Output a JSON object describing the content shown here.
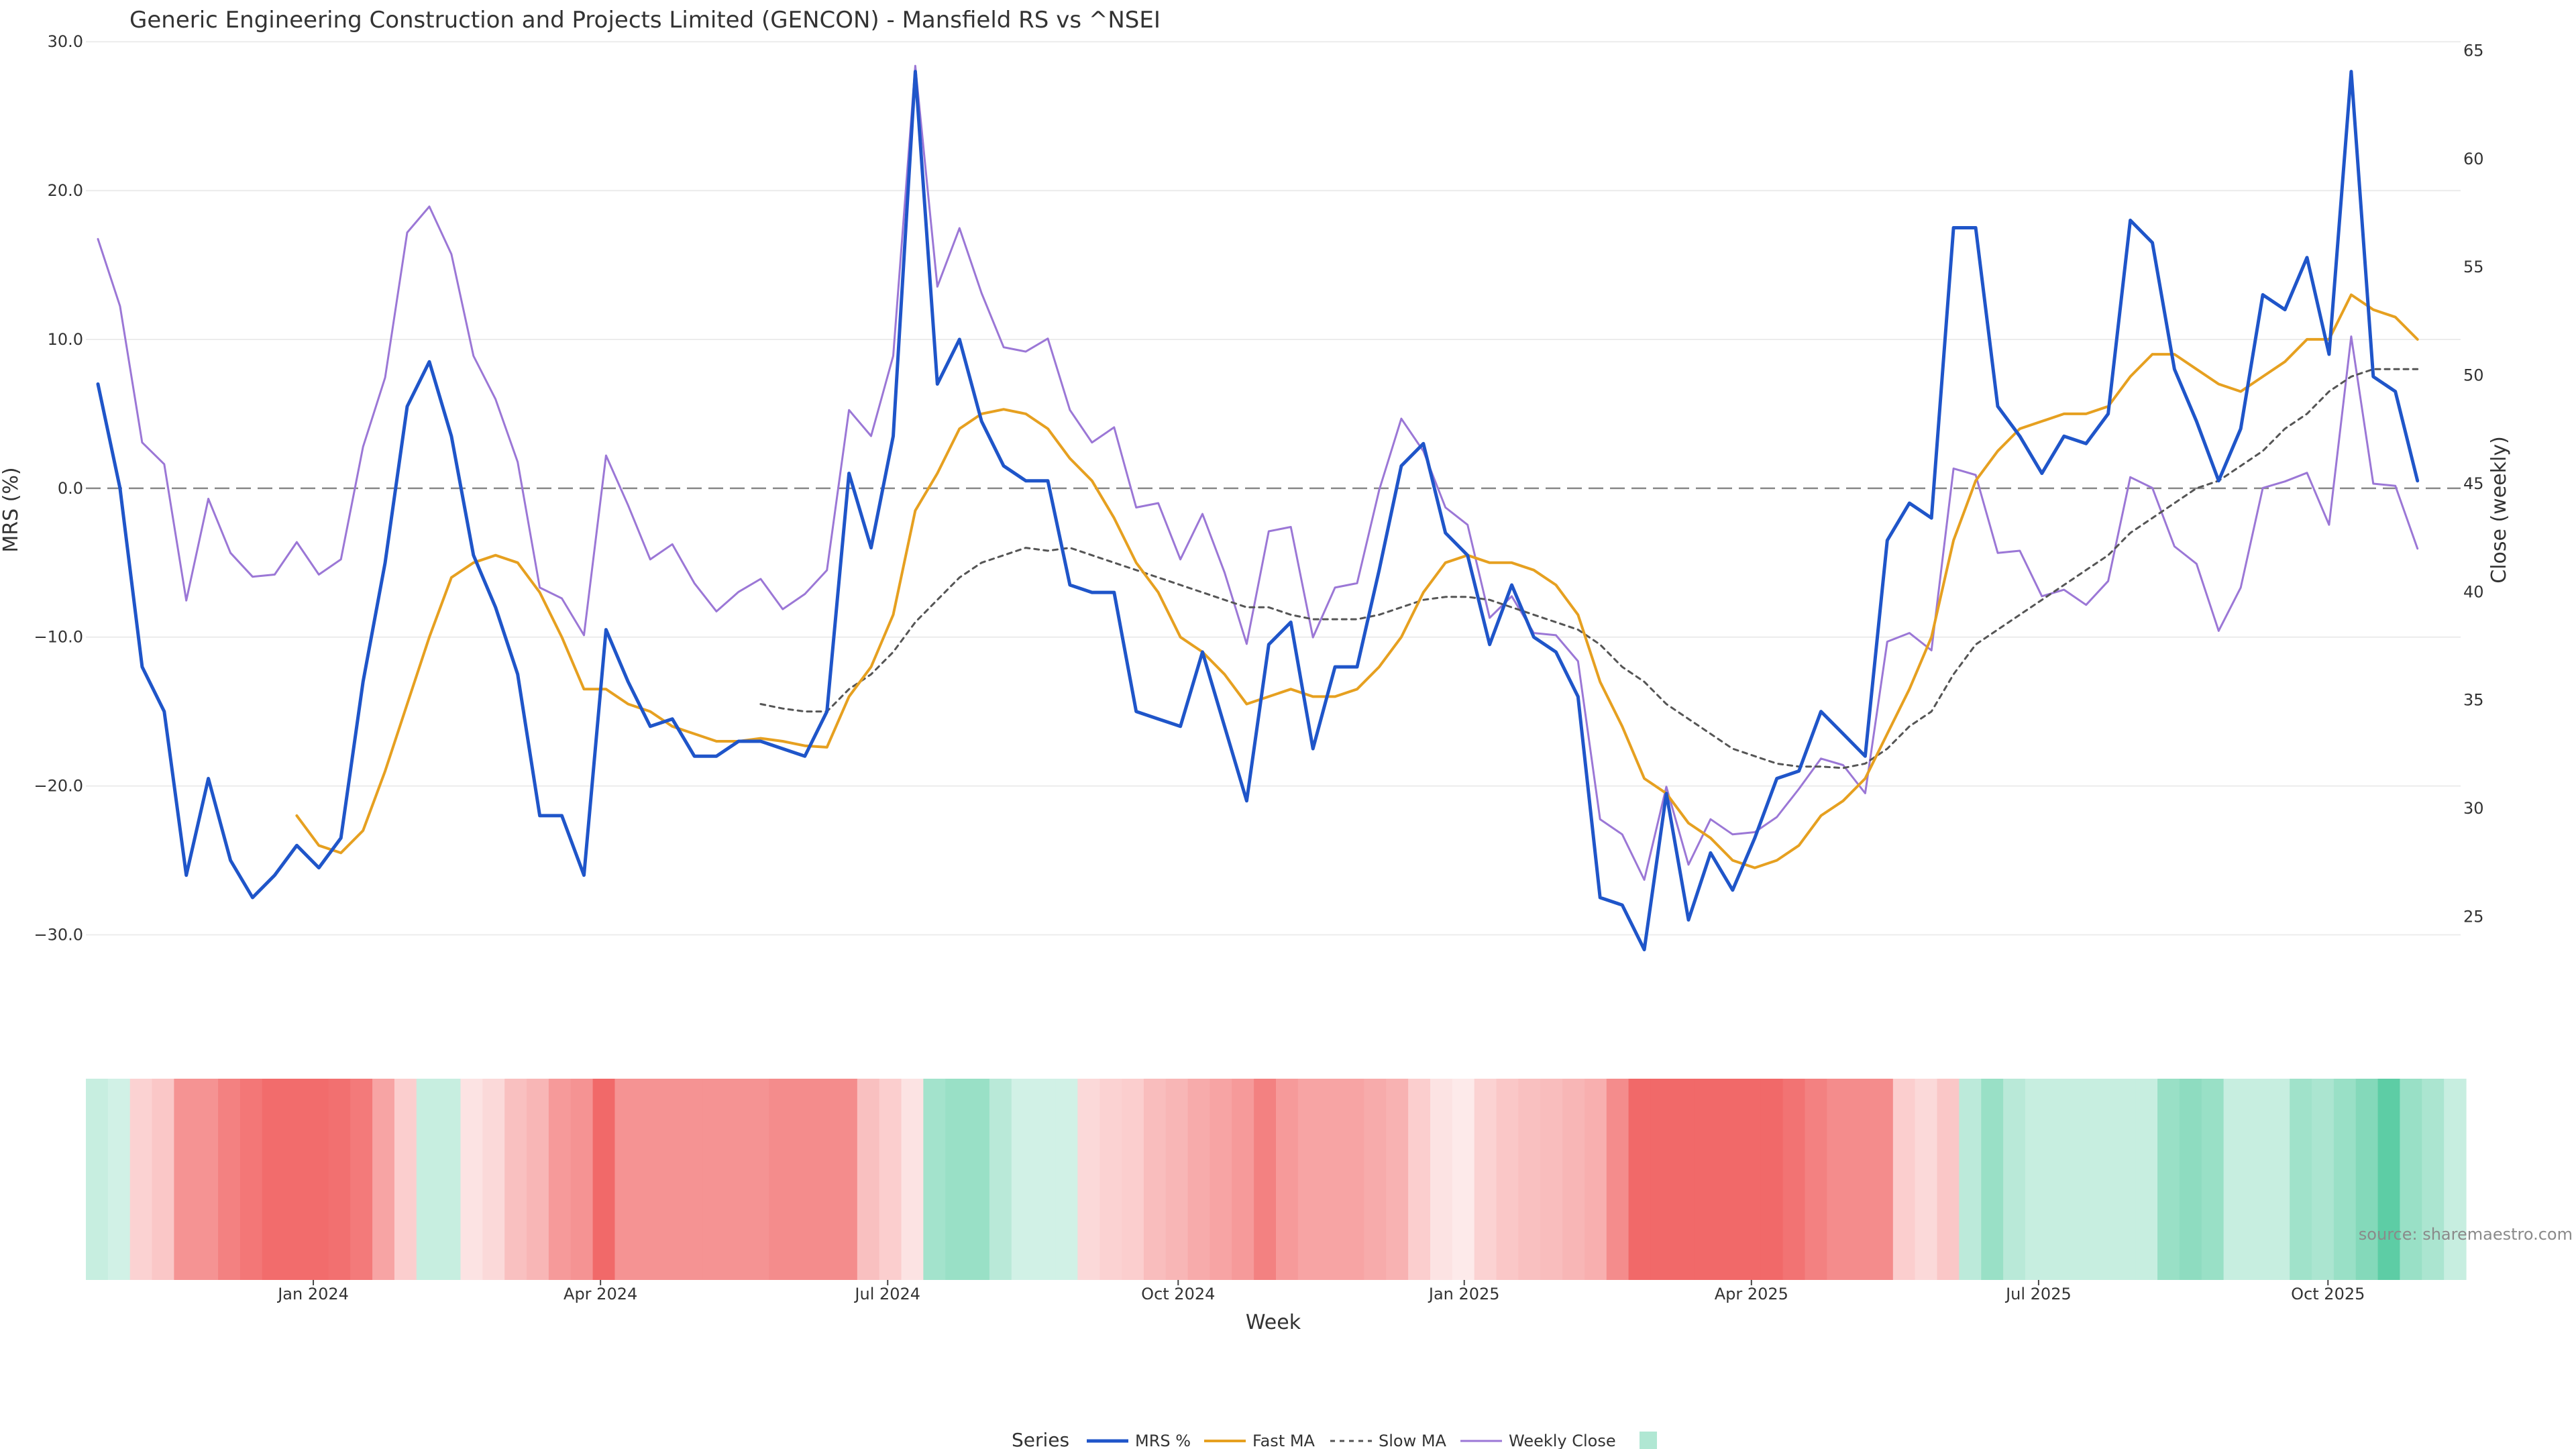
{
  "chart_data": {
    "type": "line",
    "title": "Generic Engineering Construction and Projects Limited (GENCON) - Mansfield RS vs ^NSEI",
    "xlabel": "Week",
    "ylabel": "MRS (%)",
    "y2label": "Close (weekly)",
    "ylim": [
      -33,
      31
    ],
    "y2lim": [
      22.1,
      66.1
    ],
    "yticks": [
      "30.0",
      "20.0",
      "10.0",
      "0.0",
      "−10.0",
      "−20.0",
      "−30.0"
    ],
    "yticks_values": [
      30,
      20,
      10,
      0,
      -10,
      -20,
      -30
    ],
    "y2ticks": [
      25,
      30,
      35,
      40,
      45,
      50,
      55,
      60,
      65
    ],
    "x_tick_labels": [
      "Jan 2024",
      "Apr 2024",
      "Jul 2024",
      "Oct 2024",
      "Jan 2025",
      "Apr 2025",
      "Jul 2025",
      "Oct 2025"
    ],
    "x_tick_index": [
      9.75,
      22.75,
      35.75,
      48.9,
      61.85,
      74.85,
      87.85,
      100.95
    ],
    "zero_line": true,
    "grid": true,
    "legend_title": "Series",
    "legend_placement": "bottom-center",
    "source_text": "source: sharemaestro.com",
    "colors": {
      "mrs": "#1f55c9",
      "fast": "#e6a020",
      "slow": "#555555",
      "close": "#9b77d6",
      "zero": "#888888",
      "heat_pos": "#4fc99d",
      "heat_neg": "#ef5050"
    },
    "series": [
      {
        "name": "MRS %",
        "style": "solid",
        "axis": "left",
        "values": [
          7.0,
          0.0,
          -12.0,
          -15.0,
          -26.0,
          -19.5,
          -25.0,
          -27.5,
          -26.0,
          -24.0,
          -25.5,
          -23.5,
          -13.0,
          -5.0,
          5.5,
          8.5,
          3.5,
          -4.5,
          -8.0,
          -12.5,
          -22.0,
          -22.0,
          -26.0,
          -9.5,
          -13.0,
          -16.0,
          -15.5,
          -18.0,
          -18.0,
          -17.0,
          -17.0,
          -17.5,
          -18.0,
          -15.0,
          1.0,
          -4.0,
          3.5,
          28.0,
          7.0,
          10.0,
          4.5,
          1.5,
          0.5,
          0.5,
          -6.5,
          -7.0,
          -7.0,
          -15.0,
          -15.5,
          -16.0,
          -11.0,
          -16.0,
          -21.0,
          -10.5,
          -9.0,
          -17.5,
          -12.0,
          -12.0,
          -5.5,
          1.5,
          3.0,
          -3.0,
          -4.5,
          -10.5,
          -6.5,
          -10.0,
          -11.0,
          -14.0,
          -27.5,
          -28.0,
          -31.0,
          -20.5,
          -29.0,
          -24.5,
          -27.0,
          -23.5,
          -19.5,
          -19.0,
          -15.0,
          -16.5,
          -18.0,
          -3.5,
          -1.0,
          -2.0,
          17.5,
          17.5,
          5.5,
          3.5,
          1.0,
          3.5,
          3.0,
          5.0,
          18.0,
          16.5,
          8.0,
          4.5,
          0.5,
          4.0,
          13.0,
          12.0,
          15.5,
          9.0,
          28.0,
          7.5,
          6.5,
          0.5
        ]
      },
      {
        "name": "Fast MA",
        "style": "solid",
        "axis": "left",
        "values": [
          null,
          null,
          null,
          null,
          null,
          null,
          null,
          null,
          null,
          -22.0,
          -24.0,
          -24.5,
          -23.0,
          -19.0,
          -14.5,
          -10.0,
          -6.0,
          -5.0,
          -4.5,
          -5.0,
          -7.0,
          -10.0,
          -13.5,
          -13.5,
          -14.5,
          -15.0,
          -16.0,
          -16.5,
          -17.0,
          -17.0,
          -16.8,
          -17.0,
          -17.3,
          -17.4,
          -14.0,
          -12.0,
          -8.5,
          -1.5,
          1.0,
          4.0,
          5.0,
          5.3,
          5.0,
          4.0,
          2.0,
          0.5,
          -2.0,
          -5.0,
          -7.0,
          -10.0,
          -11.0,
          -12.5,
          -14.5,
          -14.0,
          -13.5,
          -14.0,
          -14.0,
          -13.5,
          -12.0,
          -10.0,
          -7.0,
          -5.0,
          -4.5,
          -5.0,
          -5.0,
          -5.5,
          -6.5,
          -8.5,
          -13.0,
          -16.0,
          -19.5,
          -20.5,
          -22.5,
          -23.5,
          -25.0,
          -25.5,
          -25.0,
          -24.0,
          -22.0,
          -21.0,
          -19.5,
          -16.5,
          -13.5,
          -10.0,
          -3.5,
          0.5,
          2.5,
          4.0,
          4.5,
          5.0,
          5.0,
          5.5,
          7.5,
          9.0,
          9.0,
          8.0,
          7.0,
          6.5,
          7.5,
          8.5,
          10.0,
          10.0,
          13.0,
          12.0,
          11.5,
          10.0
        ]
      },
      {
        "name": "Slow MA",
        "style": "dashed",
        "axis": "left",
        "values": [
          null,
          null,
          null,
          null,
          null,
          null,
          null,
          null,
          null,
          null,
          null,
          null,
          null,
          null,
          null,
          null,
          null,
          null,
          null,
          null,
          null,
          null,
          null,
          null,
          null,
          null,
          null,
          null,
          null,
          null,
          -14.5,
          -14.8,
          -15.0,
          -15.0,
          -13.5,
          -12.5,
          -11.0,
          -9.0,
          -7.5,
          -6.0,
          -5.0,
          -4.5,
          -4.0,
          -4.2,
          -4.0,
          -4.5,
          -5.0,
          -5.5,
          -6.0,
          -6.5,
          -7.0,
          -7.5,
          -8.0,
          -8.0,
          -8.5,
          -8.8,
          -8.8,
          -8.8,
          -8.5,
          -8.0,
          -7.5,
          -7.3,
          -7.3,
          -7.5,
          -8.0,
          -8.5,
          -9.0,
          -9.5,
          -10.5,
          -12.0,
          -13.0,
          -14.5,
          -15.5,
          -16.5,
          -17.5,
          -18.0,
          -18.5,
          -18.7,
          -18.7,
          -18.8,
          -18.5,
          -17.5,
          -16.0,
          -15.0,
          -12.5,
          -10.5,
          -9.5,
          -8.5,
          -7.5,
          -6.5,
          -5.5,
          -4.5,
          -3.0,
          -2.0,
          -1.0,
          0.0,
          0.5,
          1.5,
          2.5,
          4.0,
          5.0,
          6.5,
          7.5,
          8.0,
          8.0,
          8.0
        ]
      },
      {
        "name": "Weekly Close",
        "style": "solid",
        "axis": "right",
        "values": [
          56.3,
          53.2,
          46.9,
          45.9,
          39.6,
          44.3,
          41.8,
          40.7,
          40.8,
          42.3,
          40.8,
          41.5,
          46.7,
          49.9,
          56.6,
          57.8,
          55.6,
          50.9,
          48.9,
          46.0,
          40.2,
          39.7,
          38.0,
          46.3,
          44.0,
          41.5,
          42.2,
          40.4,
          39.1,
          40.0,
          40.6,
          39.2,
          39.9,
          41.0,
          48.4,
          47.2,
          50.9,
          64.3,
          54.1,
          56.8,
          53.8,
          51.3,
          51.1,
          51.7,
          48.4,
          46.9,
          47.6,
          43.9,
          44.1,
          41.5,
          43.6,
          40.9,
          37.6,
          42.8,
          43.0,
          37.9,
          40.2,
          40.4,
          44.7,
          48.0,
          46.5,
          43.9,
          43.1,
          38.8,
          39.8,
          38.1,
          38.0,
          36.8,
          29.5,
          28.8,
          26.7,
          31.0,
          27.4,
          29.5,
          28.8,
          28.9,
          29.6,
          30.9,
          32.3,
          32.0,
          30.7,
          37.7,
          38.1,
          37.3,
          45.7,
          45.4,
          41.8,
          41.9,
          39.8,
          40.1,
          39.4,
          40.5,
          45.3,
          44.8,
          42.1,
          41.3,
          38.2,
          40.2,
          44.8,
          45.1,
          45.5,
          43.1,
          51.8,
          45.0,
          44.9,
          42.0
        ]
      }
    ],
    "heatmap_strip": [
      0.32,
      0.26,
      -0.26,
      -0.32,
      -0.62,
      -0.62,
      -0.72,
      -0.78,
      -0.84,
      -0.84,
      -0.84,
      -0.82,
      -0.76,
      -0.52,
      -0.28,
      0.32,
      0.32,
      -0.16,
      -0.22,
      -0.36,
      -0.42,
      -0.58,
      -0.62,
      -0.86,
      -0.62,
      -0.62,
      -0.62,
      -0.62,
      -0.62,
      -0.62,
      -0.62,
      -0.66,
      -0.66,
      -0.66,
      -0.66,
      -0.36,
      -0.28,
      -0.16,
      0.52,
      0.58,
      0.58,
      0.4,
      0.26,
      0.26,
      0.26,
      -0.22,
      -0.26,
      -0.28,
      -0.38,
      -0.42,
      -0.48,
      -0.52,
      -0.58,
      -0.72,
      -0.58,
      -0.52,
      -0.52,
      -0.52,
      -0.48,
      -0.44,
      -0.28,
      -0.16,
      -0.12,
      -0.26,
      -0.32,
      -0.36,
      -0.38,
      -0.42,
      -0.46,
      -0.66,
      -0.86,
      -0.86,
      -0.86,
      -0.86,
      -0.86,
      -0.86,
      -0.86,
      -0.8,
      -0.72,
      -0.66,
      -0.66,
      -0.66,
      -0.28,
      -0.22,
      -0.32,
      0.38,
      0.58,
      0.4,
      0.32,
      0.32,
      0.32,
      0.32,
      0.32,
      0.32,
      0.58,
      0.64,
      0.58,
      0.32,
      0.32,
      0.32,
      0.54,
      0.48,
      0.58,
      0.7,
      0.92,
      0.58,
      0.48,
      0.32
    ]
  }
}
